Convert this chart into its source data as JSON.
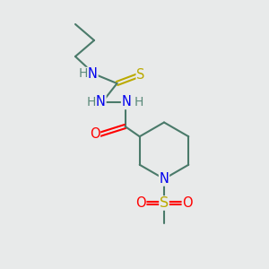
{
  "background_color": "#e8eaea",
  "bond_color": "#4a7a6a",
  "atom_colors": {
    "N": "#0000ee",
    "S_thio": "#bbaa00",
    "O": "#ff0000",
    "S_sulfon": "#bbaa00",
    "H": "#5a8a7a",
    "C": "#4a7a6a"
  },
  "line_width": 1.5,
  "font_size": 10.5,
  "figsize": [
    3.0,
    3.0
  ],
  "dpi": 100
}
